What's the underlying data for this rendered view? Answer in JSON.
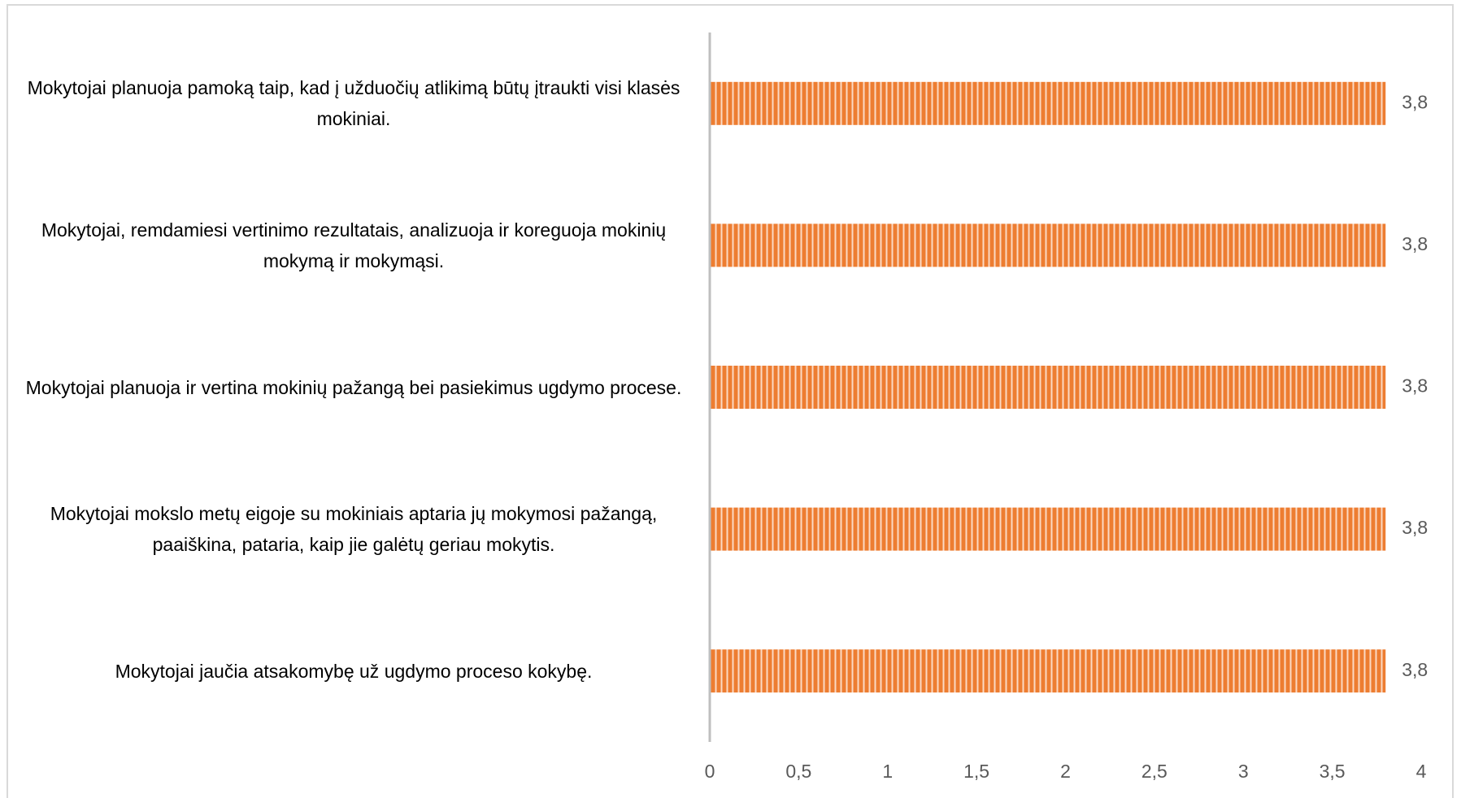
{
  "chart_data": {
    "type": "bar",
    "orientation": "horizontal",
    "categories": [
      "Mokytojai planuoja pamoką taip, kad į užduočių atlikimą būtų įtraukti visi klasės mokiniai.",
      "Mokytojai, remdamiesi vertinimo rezultatais, analizuoja ir koreguoja mokinių mokymą ir mokymąsi.",
      "Mokytojai planuoja ir vertina mokinių pažangą bei pasiekimus ugdymo procese.",
      "Mokytojai mokslo metų eigoje su mokiniais aptaria jų mokymosi pažangą, paaiškina, pataria, kaip jie galėtų geriau mokytis.",
      "Mokytojai jaučia atsakomybę už ugdymo proceso kokybę."
    ],
    "values": [
      3.8,
      3.8,
      3.8,
      3.8,
      3.8
    ],
    "value_labels": [
      "3,8",
      "3,8",
      "3,8",
      "3,8",
      "3,8"
    ],
    "color": "#ed7d31",
    "xlim": [
      0,
      4
    ],
    "xticks": [
      0,
      {
        "value": 0.5,
        "label": "0,5"
      },
      1,
      {
        "value": 1.5,
        "label": "1,5"
      },
      2,
      {
        "value": 2.5,
        "label": "2,5"
      },
      3,
      {
        "value": 3.5,
        "label": "3,5"
      },
      4
    ],
    "grid": false
  }
}
